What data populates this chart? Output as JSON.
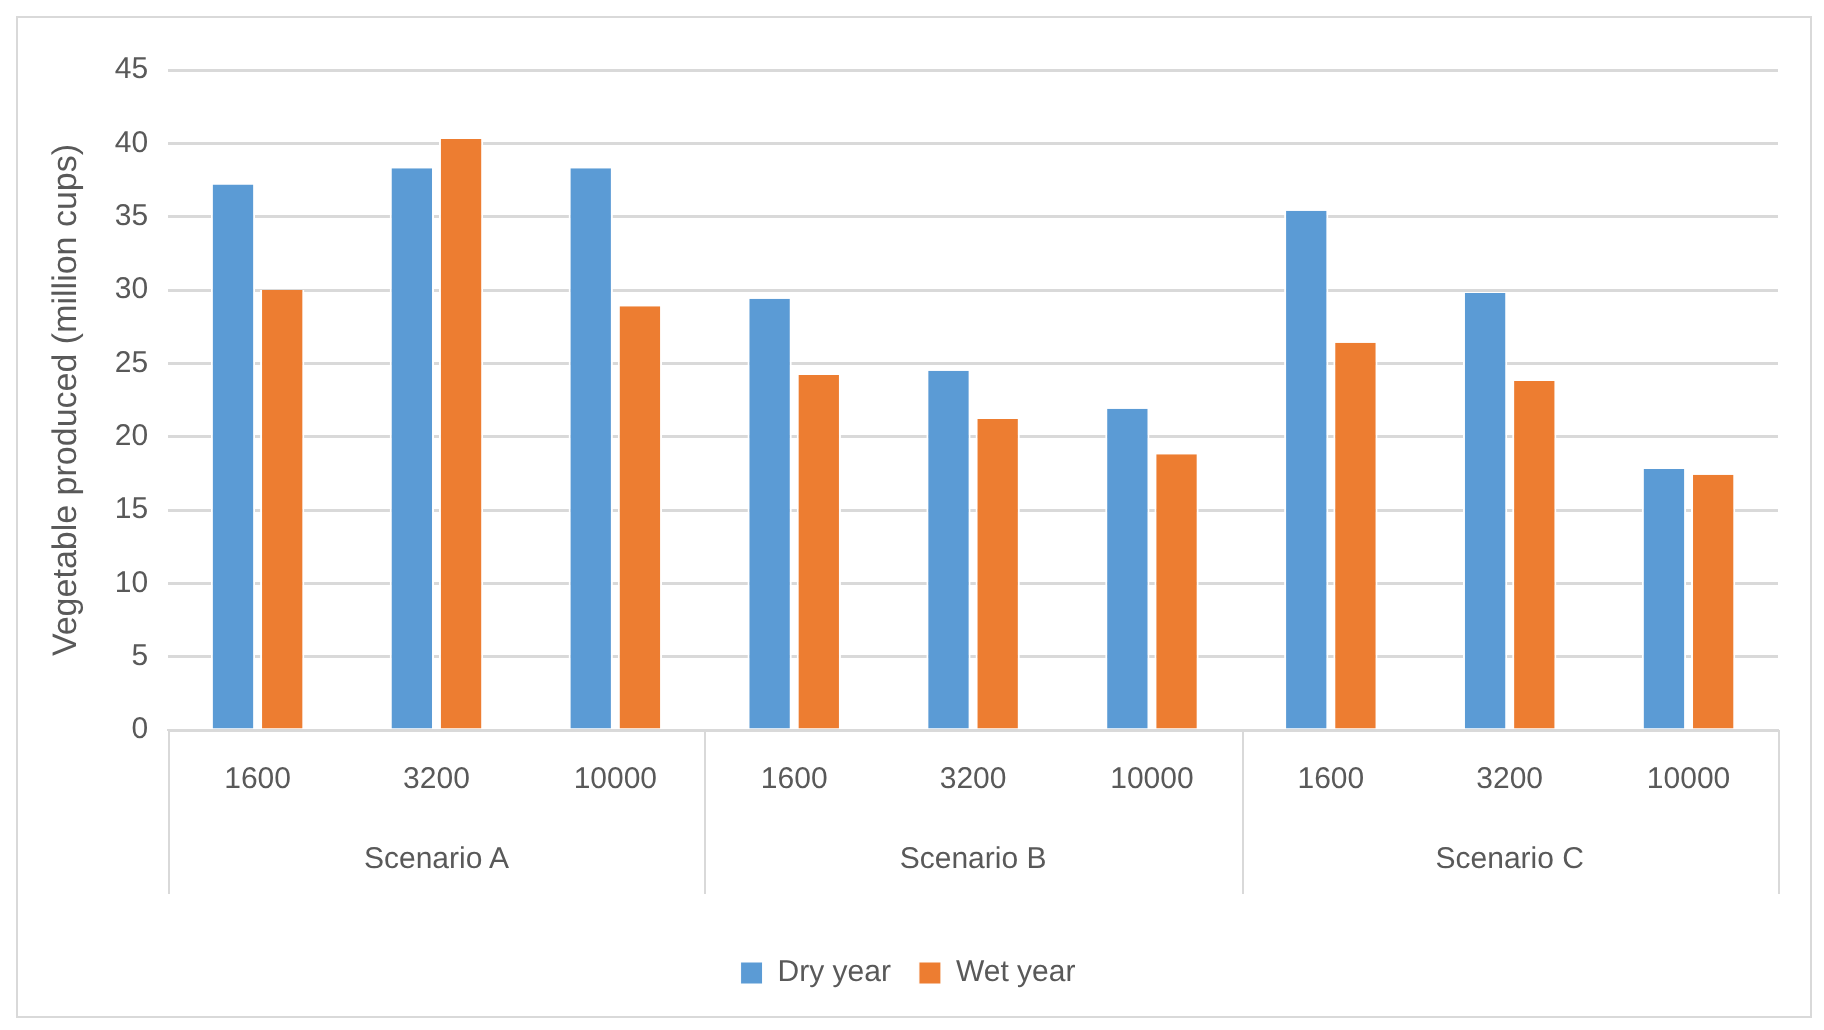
{
  "chart_data": {
    "type": "bar",
    "ylabel": "Vegetable produced (million cups)",
    "categories": [
      "1600",
      "3200",
      "10000",
      "1600",
      "3200",
      "10000",
      "1600",
      "3200",
      "10000"
    ],
    "series": [
      {
        "name": "Dry year",
        "color": "#5b9bd5",
        "values": [
          37.2,
          38.3,
          38.3,
          29.4,
          24.5,
          21.9,
          35.4,
          29.8,
          17.8
        ]
      },
      {
        "name": "Wet year",
        "color": "#ed7d31",
        "values": [
          30.0,
          40.3,
          28.9,
          24.2,
          21.2,
          18.8,
          26.4,
          23.8,
          17.4
        ]
      }
    ],
    "annotations": [
      "Scenario A",
      "Scenario B",
      "Scenario C"
    ],
    "ylim": [
      0,
      45
    ],
    "yticks": [
      0,
      5,
      10,
      15,
      20,
      25,
      30,
      35,
      40,
      45
    ],
    "grid": "y",
    "legend": "bottom"
  }
}
